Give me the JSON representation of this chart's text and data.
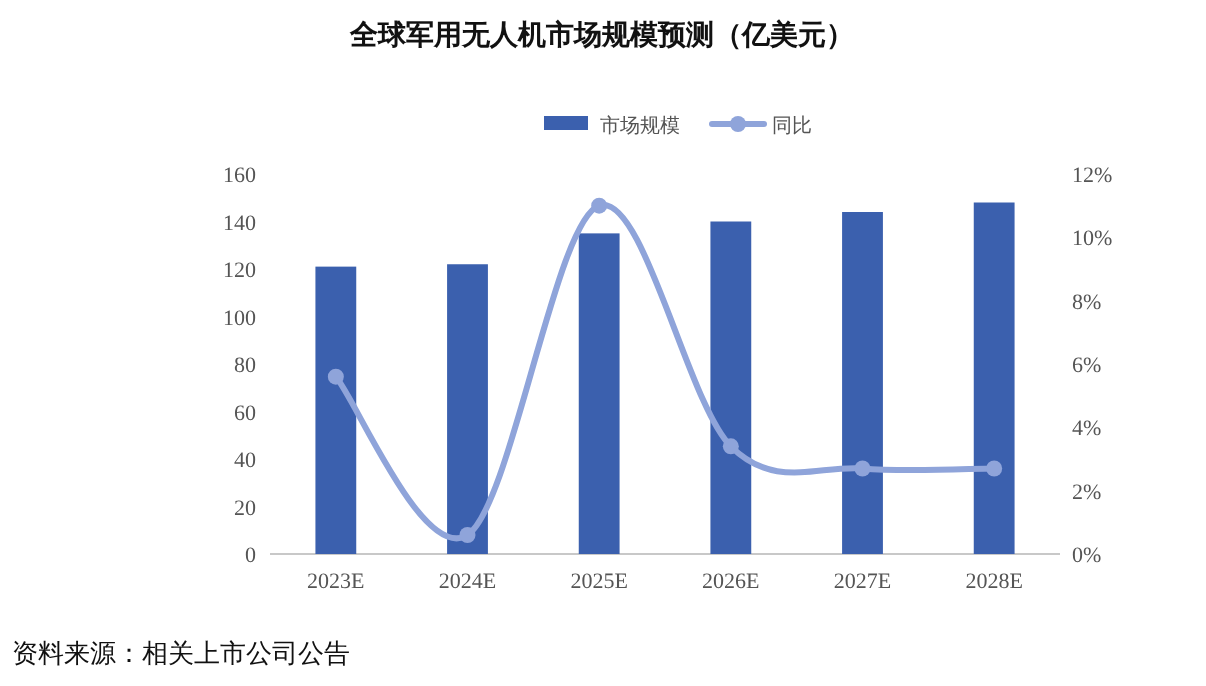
{
  "chart_data": {
    "type": "bar",
    "title": "全球军用无人机市场规模预测（亿美元）",
    "categories": [
      "2023E",
      "2024E",
      "2025E",
      "2026E",
      "2027E",
      "2028E"
    ],
    "series": [
      {
        "name": "市场规模",
        "color": "#3b60ae",
        "values": [
          121,
          122,
          135,
          140,
          144,
          148
        ]
      },
      {
        "name": "同比",
        "type": "line",
        "axis": "y2",
        "color": "#8fa4da",
        "marker": "circle",
        "values": [
          5.6,
          0.6,
          11.0,
          3.4,
          2.7,
          2.7
        ]
      }
    ],
    "ylim": [
      0,
      160
    ],
    "yticks": [
      0,
      20,
      40,
      60,
      80,
      100,
      120,
      140,
      160
    ],
    "y2lim": [
      0,
      12
    ],
    "y2ticks": [
      {
        "value": 0,
        "label": "0%"
      },
      {
        "value": 2,
        "label": "2%"
      },
      {
        "value": 4,
        "label": "4%"
      },
      {
        "value": 6,
        "label": "6%"
      },
      {
        "value": 8,
        "label": "8%"
      },
      {
        "value": 10,
        "label": "10%"
      },
      {
        "value": 12,
        "label": "12%"
      }
    ],
    "legend": "top",
    "annotations": [
      "资料来源：相关上市公司公告"
    ]
  }
}
